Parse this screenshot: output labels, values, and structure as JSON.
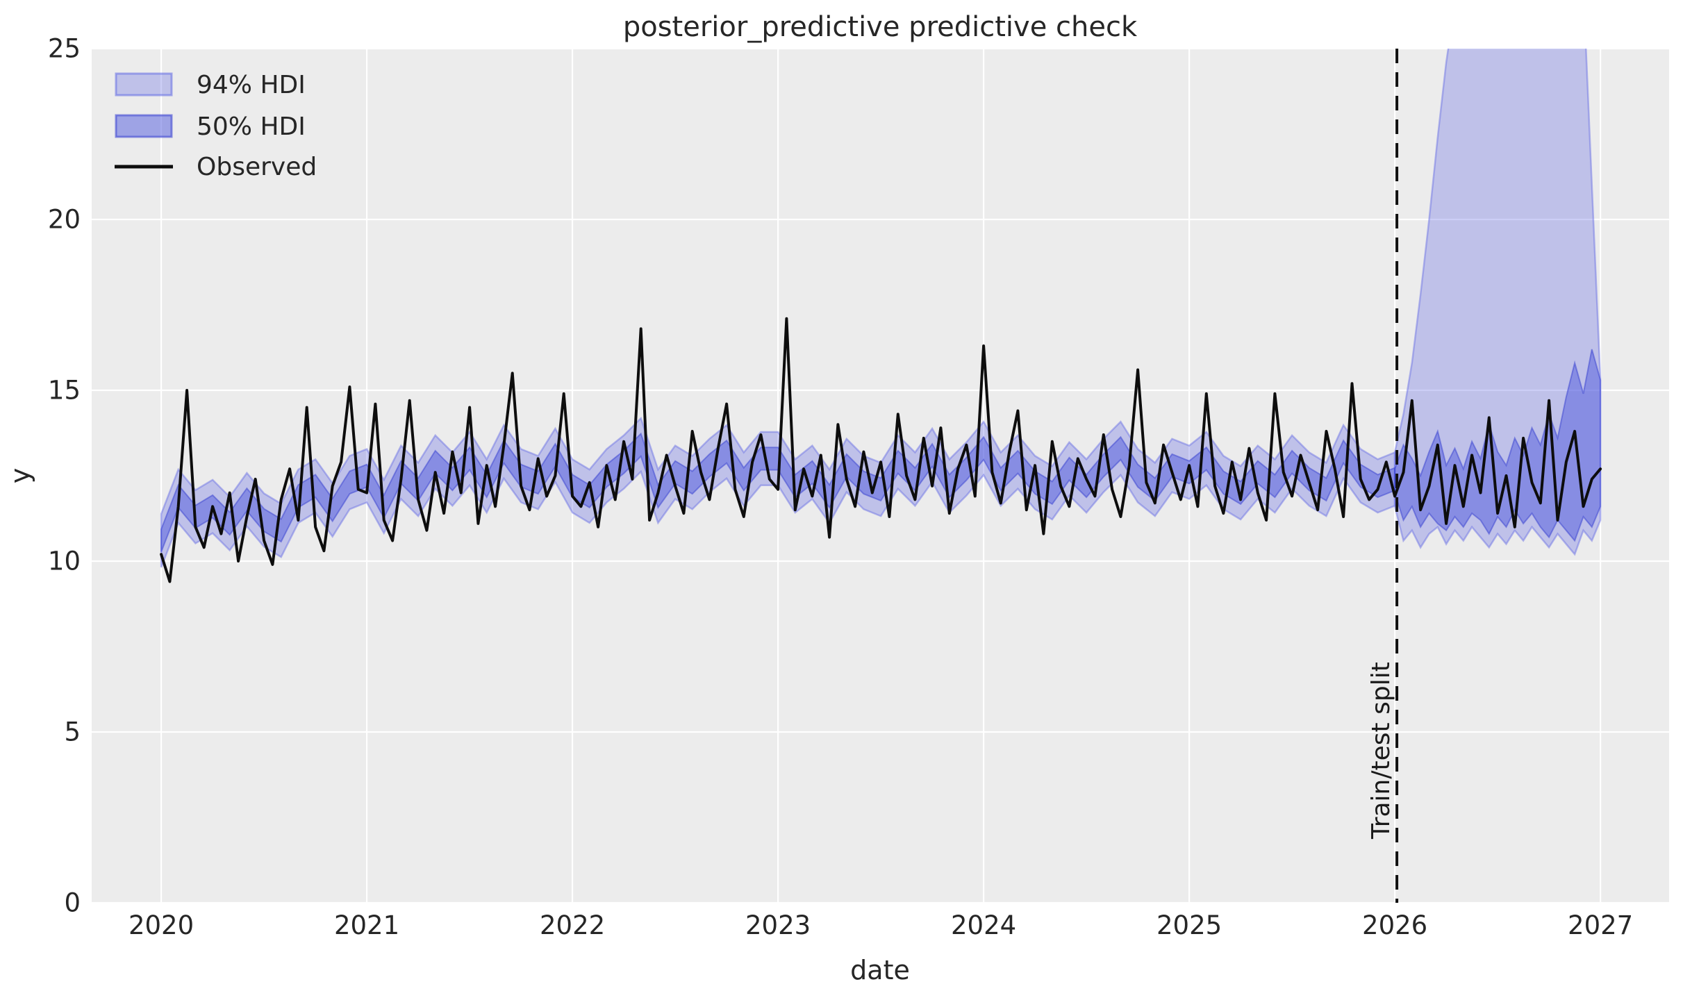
{
  "title": "posterior_predictive predictive check",
  "xlabel": "date",
  "ylabel": "y",
  "legend": {
    "hdi94": "94% HDI",
    "hdi50": "50% HDI",
    "observed": "Observed"
  },
  "split_label": "Train/test split",
  "colors": {
    "panel_bg": "#ececec",
    "grid": "#ffffff",
    "observed_line": "#0d0d0d",
    "hdi94_fill": "rgba(99,107,228,0.33)",
    "hdi94_edge": "rgba(99,107,228,0.45)",
    "hdi50_fill": "rgba(80,89,222,0.50)",
    "hdi50_edge": "rgba(64,72,210,0.55)",
    "split_line": "#111111",
    "text": "#262626"
  },
  "chart_data": {
    "type": "line",
    "title": "posterior_predictive predictive check",
    "xlabel": "date",
    "ylabel": "y",
    "xlim": [
      2019.662,
      2027.334
    ],
    "ylim": [
      0,
      25
    ],
    "xticks": [
      2020,
      2021,
      2022,
      2023,
      2024,
      2025,
      2026,
      2027
    ],
    "yticks": [
      0,
      5,
      10,
      15,
      20,
      25
    ],
    "grid": true,
    "legend_position": "upper left",
    "legend_entries": [
      "94% HDI",
      "50% HDI",
      "Observed"
    ],
    "train_test_split_x": 2026.01,
    "observed": {
      "x_start": 2020.0,
      "x_step_years": 0.0416667,
      "values": [
        10.2,
        9.4,
        11.6,
        15.0,
        11.0,
        10.4,
        11.6,
        10.8,
        12.0,
        10.0,
        11.3,
        12.4,
        10.6,
        9.9,
        11.8,
        12.7,
        11.2,
        14.5,
        11.0,
        10.3,
        12.2,
        12.9,
        15.1,
        12.1,
        12.0,
        14.6,
        11.2,
        10.6,
        12.4,
        14.7,
        11.8,
        10.9,
        12.6,
        11.4,
        13.2,
        12.0,
        14.5,
        11.1,
        12.8,
        11.6,
        13.4,
        15.5,
        12.2,
        11.5,
        13.0,
        11.9,
        12.5,
        14.9,
        11.9,
        11.6,
        12.3,
        11.0,
        12.8,
        11.8,
        13.5,
        12.4,
        16.8,
        11.2,
        12.0,
        13.1,
        12.2,
        11.4,
        13.8,
        12.6,
        11.8,
        13.3,
        14.6,
        12.1,
        11.3,
        12.9,
        13.7,
        12.4,
        12.1,
        17.1,
        11.5,
        12.7,
        11.9,
        13.1,
        10.7,
        14.0,
        12.4,
        11.6,
        13.2,
        12.0,
        12.9,
        11.3,
        14.3,
        12.5,
        11.8,
        13.6,
        12.2,
        13.9,
        11.4,
        12.7,
        13.4,
        11.9,
        16.3,
        12.6,
        11.7,
        13.2,
        14.4,
        11.5,
        12.8,
        10.8,
        13.5,
        12.2,
        11.6,
        13.0,
        12.4,
        11.9,
        13.7,
        12.1,
        11.3,
        12.8,
        15.6,
        12.3,
        11.7,
        13.4,
        12.6,
        11.8,
        12.8,
        11.6,
        14.9,
        12.2,
        11.4,
        12.9,
        11.8,
        13.3,
        12.0,
        11.2,
        14.9,
        12.6,
        11.9,
        13.1,
        12.3,
        11.5,
        13.8,
        12.7,
        11.3,
        15.2,
        12.4,
        11.8,
        12.1,
        12.9,
        11.9,
        12.6,
        14.7,
        11.5,
        12.2,
        13.4,
        11.1,
        12.8,
        11.6,
        13.1,
        12.0,
        14.2,
        11.4,
        12.5,
        11.0,
        13.6,
        12.3,
        11.7,
        14.7,
        11.2,
        12.9,
        13.8,
        11.6,
        12.4,
        12.7
      ]
    },
    "hdi_train": {
      "x_start": 2020.0,
      "x_step_years": 0.0833333,
      "center": [
        10.6,
        11.9,
        11.3,
        11.6,
        11.1,
        11.8,
        11.2,
        10.9,
        11.9,
        12.2,
        11.5,
        12.3,
        12.5,
        11.6,
        12.6,
        12.1,
        12.9,
        12.4,
        13.0,
        12.2,
        13.2,
        12.5,
        12.3,
        13.1,
        12.2,
        11.9,
        12.5,
        12.9,
        13.4,
        11.9,
        12.6,
        12.3,
        12.8,
        13.2,
        12.4,
        13.0,
        13.0,
        12.2,
        12.6,
        11.9,
        12.8,
        12.3,
        12.1,
        12.9,
        12.4,
        13.1,
        12.2,
        12.7,
        13.3,
        12.4,
        12.9,
        12.3,
        12.0,
        12.7,
        12.2,
        12.8,
        13.3,
        12.5,
        12.1,
        12.8,
        12.6,
        13.0,
        12.3,
        12.0,
        12.6,
        12.2,
        12.9,
        12.4,
        12.1,
        13.2,
        12.5,
        12.2,
        12.4
      ],
      "hdi94_halfwidth": 0.78,
      "hdi50_halfwidth": 0.33
    },
    "hdi_forecast": {
      "x_start": 2026.0,
      "x_step_years": 0.0416667,
      "hdi94_lo": [
        11.6,
        10.6,
        10.9,
        10.4,
        10.8,
        11.0,
        10.5,
        10.9,
        10.6,
        11.0,
        10.7,
        10.4,
        10.8,
        10.5,
        10.9,
        10.6,
        11.0,
        10.7,
        10.4,
        10.8,
        10.5,
        10.2,
        10.9,
        10.6,
        11.2
      ],
      "hdi94_hi": [
        13.2,
        14.3,
        15.8,
        17.8,
        20.0,
        22.4,
        24.6,
        26.3,
        26.8,
        26.8,
        26.8,
        26.8,
        26.8,
        26.8,
        26.8,
        26.8,
        26.8,
        26.8,
        26.8,
        26.8,
        26.8,
        26.8,
        26.8,
        21.0,
        15.3
      ],
      "hdi50_lo": [
        12.0,
        11.2,
        11.6,
        11.0,
        11.4,
        11.1,
        10.9,
        11.3,
        11.0,
        11.4,
        11.2,
        10.8,
        11.3,
        11.0,
        11.5,
        11.1,
        11.4,
        11.0,
        10.7,
        11.2,
        10.9,
        10.6,
        11.3,
        11.0,
        11.6
      ],
      "hdi50_hi": [
        12.7,
        13.4,
        13.0,
        12.5,
        13.2,
        13.8,
        12.8,
        13.3,
        12.7,
        13.5,
        13.0,
        14.0,
        13.2,
        12.8,
        13.6,
        13.1,
        13.9,
        13.4,
        14.3,
        13.6,
        14.8,
        15.8,
        14.9,
        16.2,
        15.3
      ]
    }
  }
}
